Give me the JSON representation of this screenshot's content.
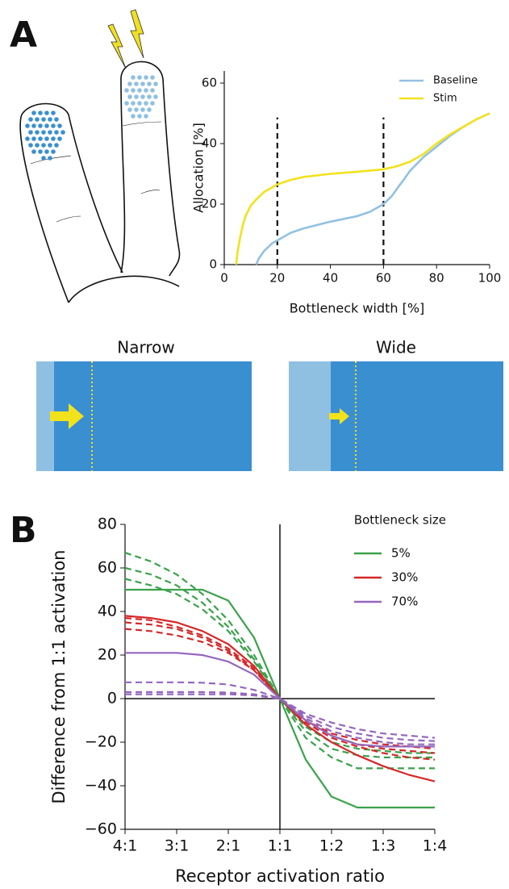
{
  "figure": {
    "panel_labels": [
      "A",
      "B"
    ],
    "diagram_titles": [
      "Narrow",
      "Wide"
    ]
  },
  "chart_data": [
    {
      "type": "line",
      "xlabel": "Bottleneck width [%]",
      "ylabel": "Allocation [%]",
      "xlim": [
        0,
        100
      ],
      "ylim": [
        0,
        64
      ],
      "xticks": [
        0,
        20,
        40,
        60,
        80,
        100
      ],
      "yticks": [
        0,
        20,
        40,
        60
      ],
      "vlines": [
        20,
        60
      ],
      "legend": "upper right",
      "series": [
        {
          "name": "Baseline",
          "color": "#92c1e2",
          "x": [
            12,
            13,
            15,
            18,
            20,
            25,
            30,
            40,
            50,
            55,
            60,
            63,
            65,
            68,
            70,
            75,
            80,
            85,
            90,
            95,
            100
          ],
          "values": [
            0,
            2,
            4.5,
            7,
            8,
            10.5,
            12,
            14.2,
            16,
            17.5,
            20,
            22.5,
            25,
            28.5,
            31,
            35.5,
            39,
            42.5,
            45.5,
            48,
            50
          ]
        },
        {
          "name": "Stim",
          "color": "#f2e21c",
          "x": [
            4.5,
            5,
            6,
            7,
            8,
            10,
            12,
            15,
            20,
            25,
            30,
            40,
            50,
            60,
            65,
            70,
            75,
            80,
            85,
            90,
            95,
            100
          ],
          "values": [
            0,
            4,
            9,
            13,
            16,
            19.5,
            21.5,
            24,
            26.5,
            28,
            29,
            30,
            30.7,
            31.5,
            32.5,
            34,
            36.5,
            40,
            43,
            45.5,
            48,
            50
          ]
        }
      ]
    },
    {
      "type": "line",
      "xlabel": "Receptor activation ratio",
      "ylabel": "Difference from 1:1 activation",
      "xlim": [
        -3,
        3
      ],
      "ylim": [
        -60,
        80
      ],
      "xticks": [
        {
          "value": -3,
          "label": "4:1"
        },
        {
          "value": -2,
          "label": "3:1"
        },
        {
          "value": -1,
          "label": "2:1"
        },
        {
          "value": 0,
          "label": "1:1"
        },
        {
          "value": 1,
          "label": "1:2"
        },
        {
          "value": 2,
          "label": "1:3"
        },
        {
          "value": 3,
          "label": "1:4"
        }
      ],
      "yticks": [
        {
          "value": -60,
          "label": "−60"
        },
        {
          "value": -40,
          "label": "−40"
        },
        {
          "value": -20,
          "label": "−20"
        },
        0,
        20,
        40,
        60,
        80
      ],
      "axhline": 0,
      "axvline": 0,
      "legend": "upper right",
      "legend_title": "Bottleneck size",
      "x": [
        -3,
        -2.5,
        -2,
        -1.5,
        -1,
        -0.5,
        0,
        0.5,
        1,
        1.5,
        2,
        2.5,
        3
      ],
      "series": [
        {
          "color": "#3aa24a",
          "dash": true,
          "values": [
            67,
            63,
            57,
            48,
            36,
            20,
            0,
            -18,
            -27,
            -32,
            -32,
            -32,
            -32
          ]
        },
        {
          "color": "#3aa24a",
          "dash": true,
          "values": [
            60,
            57,
            52,
            44,
            33,
            18,
            0,
            -15,
            -23,
            -26,
            -27,
            -27,
            -27
          ]
        },
        {
          "color": "#3aa24a",
          "dash": true,
          "values": [
            55,
            52,
            48,
            41,
            31,
            17,
            0,
            -13,
            -20,
            -23,
            -24,
            -25,
            -25
          ]
        },
        {
          "color": "#d62728",
          "dash": true,
          "values": [
            37,
            36,
            33,
            29,
            23,
            14,
            0,
            -10,
            -17,
            -21,
            -23,
            -24,
            -25
          ]
        },
        {
          "color": "#d62728",
          "dash": true,
          "values": [
            32,
            31,
            29,
            26,
            21,
            13,
            0,
            -11,
            -18,
            -22,
            -25,
            -27,
            -28
          ]
        },
        {
          "color": "#d62728",
          "dash": true,
          "values": [
            35,
            34,
            32,
            28,
            22,
            13,
            0,
            -10,
            -16,
            -19,
            -21,
            -22,
            -23
          ]
        },
        {
          "color": "#9467bd",
          "dash": true,
          "values": [
            7.5,
            7.5,
            7.5,
            7.3,
            6.5,
            4,
            0,
            -8,
            -13,
            -16,
            -18,
            -19,
            -19.5
          ]
        },
        {
          "color": "#9467bd",
          "dash": true,
          "values": [
            3,
            3,
            3,
            3,
            2.8,
            2,
            0,
            -7,
            -11,
            -14,
            -16,
            -17,
            -18
          ]
        },
        {
          "color": "#9467bd",
          "dash": true,
          "values": [
            2,
            2,
            2,
            2,
            2,
            1.5,
            0,
            -9,
            -15,
            -18,
            -20,
            -21,
            -21
          ]
        },
        {
          "name": "5%",
          "color": "#3aa24a",
          "values": [
            50,
            50,
            50,
            50,
            45,
            28,
            0,
            -28,
            -45,
            -50,
            -50,
            -50,
            -50
          ]
        },
        {
          "name": "30%",
          "color": "#d62728",
          "values": [
            38,
            37,
            35,
            31,
            25,
            15,
            0,
            -12,
            -20,
            -26,
            -31,
            -35,
            -38
          ]
        },
        {
          "name": "70%",
          "color": "#9467bd",
          "values": [
            21,
            21,
            21,
            20,
            17,
            11,
            0,
            -10,
            -17,
            -21,
            -22,
            -22,
            -22
          ]
        }
      ]
    }
  ]
}
